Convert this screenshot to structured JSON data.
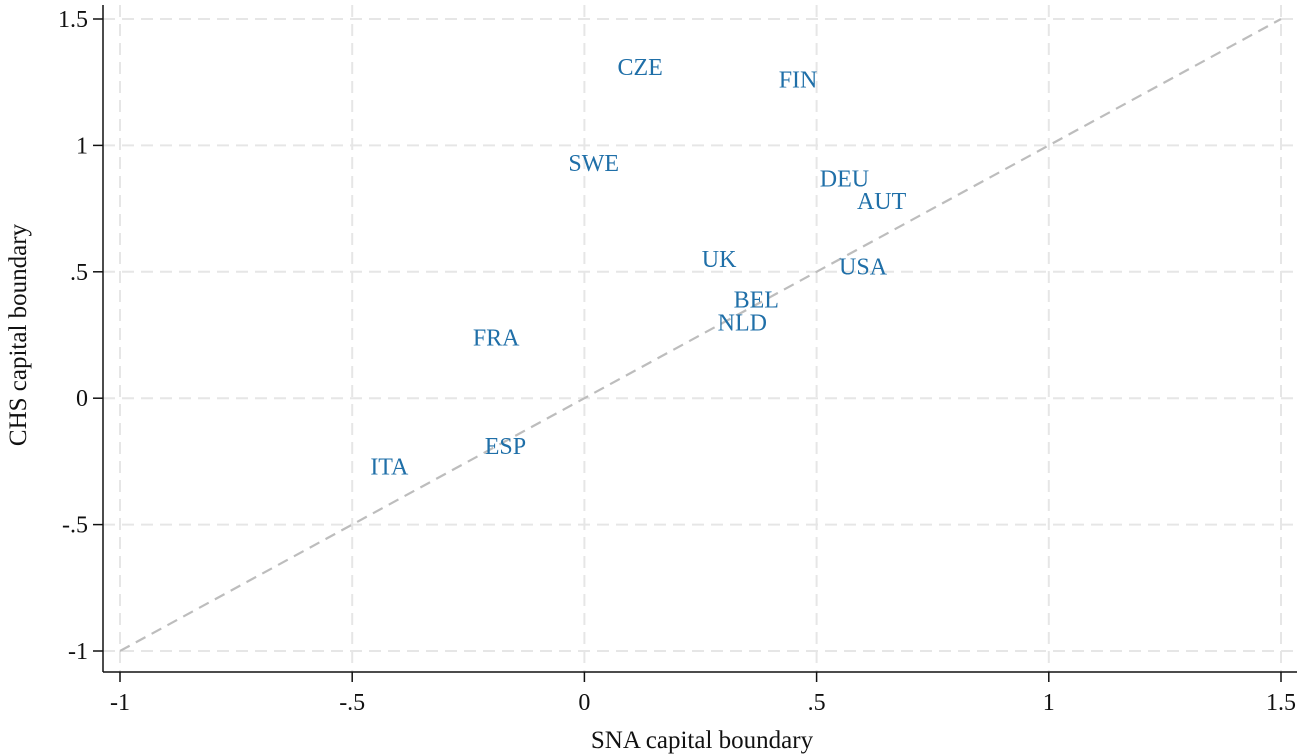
{
  "chart_data": {
    "type": "scatter",
    "title": "",
    "xlabel": "SNA capital boundary",
    "ylabel": "CHS capital boundary",
    "xlim": [
      -1,
      1.5
    ],
    "ylim": [
      -1,
      1.5
    ],
    "x_ticks": [
      -1,
      -0.5,
      0,
      0.5,
      1,
      1.5
    ],
    "x_tick_labels": [
      "-1",
      "-.5",
      "0",
      ".5",
      "1",
      "1.5"
    ],
    "y_ticks": [
      -1,
      -0.5,
      0,
      0.5,
      1,
      1.5
    ],
    "y_tick_labels": [
      "-1",
      "-.5",
      "0",
      ".5",
      "1",
      "1.5"
    ],
    "grid": true,
    "reference_line": {
      "type": "45-degree",
      "from": [
        -1,
        -1
      ],
      "to": [
        1.5,
        1.5
      ],
      "style": "dashed",
      "color": "#bdbdbd"
    },
    "marker_color": "#1f6fa8",
    "points": [
      {
        "label": "CZE",
        "x": 0.12,
        "y": 1.31
      },
      {
        "label": "FIN",
        "x": 0.46,
        "y": 1.26
      },
      {
        "label": "SWE",
        "x": 0.02,
        "y": 0.93
      },
      {
        "label": "DEU",
        "x": 0.56,
        "y": 0.87
      },
      {
        "label": "AUT",
        "x": 0.64,
        "y": 0.78
      },
      {
        "label": "UK",
        "x": 0.29,
        "y": 0.55
      },
      {
        "label": "USA",
        "x": 0.6,
        "y": 0.52
      },
      {
        "label": "BEL",
        "x": 0.37,
        "y": 0.39
      },
      {
        "label": "NLD",
        "x": 0.34,
        "y": 0.3
      },
      {
        "label": "FRA",
        "x": -0.19,
        "y": 0.24
      },
      {
        "label": "ESP",
        "x": -0.17,
        "y": -0.19
      },
      {
        "label": "ITA",
        "x": -0.42,
        "y": -0.27
      }
    ]
  }
}
